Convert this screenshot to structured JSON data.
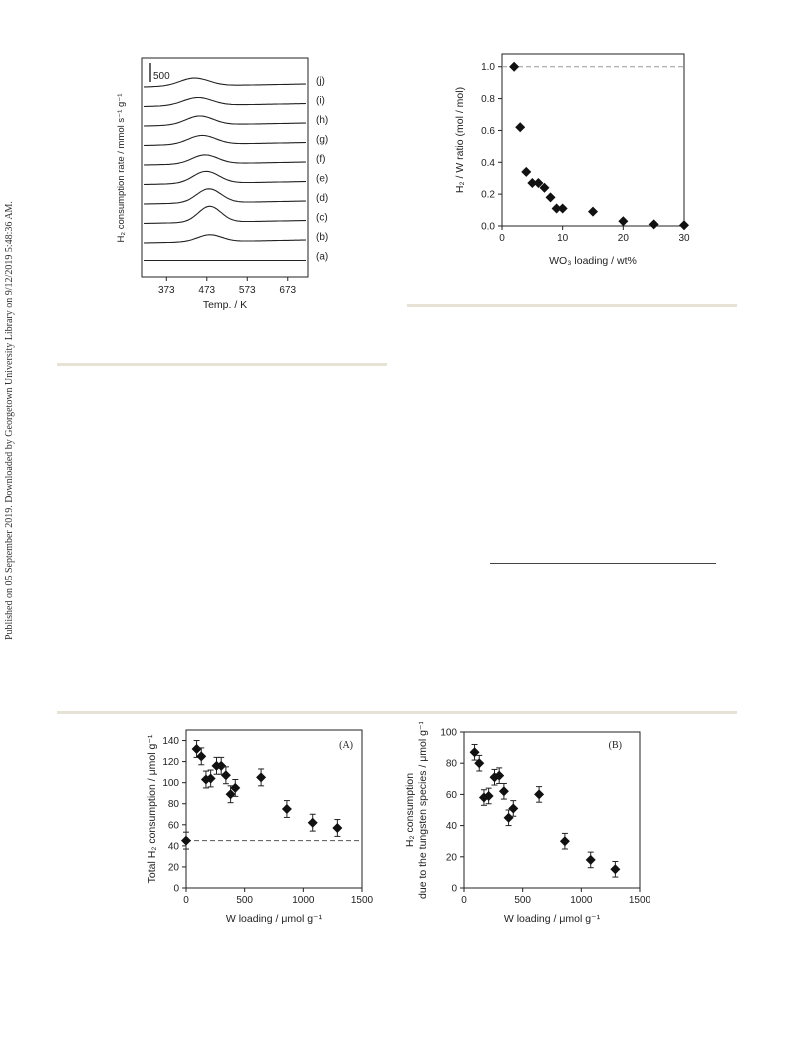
{
  "side_note": "Published on 05 September 2019. Downloaded by Georgetown University Library on 9/12/2019 5:48:36 AM.",
  "chart_data": [
    {
      "type": "line",
      "ylabel": "H₂ consumption rate / mmol s⁻¹ g⁻¹",
      "xlabel": "Temp. / K",
      "xticks": [
        373,
        473,
        573,
        673
      ],
      "xlim": [
        313,
        723
      ],
      "scale_bar_label": "500",
      "series": [
        {
          "name": "(a)",
          "peak_x": 473,
          "peak_height": 0,
          "peak_width": 60
        },
        {
          "name": "(b)",
          "peak_x": 480,
          "peak_height": 7,
          "peak_width": 30
        },
        {
          "name": "(c)",
          "peak_x": 480,
          "peak_height": 16,
          "peak_width": 28
        },
        {
          "name": "(d)",
          "peak_x": 478,
          "peak_height": 14,
          "peak_width": 30
        },
        {
          "name": "(e)",
          "peak_x": 471,
          "peak_height": 12,
          "peak_width": 32
        },
        {
          "name": "(f)",
          "peak_x": 468,
          "peak_height": 9,
          "peak_width": 32
        },
        {
          "name": "(g)",
          "peak_x": 461,
          "peak_height": 9,
          "peak_width": 34
        },
        {
          "name": "(h)",
          "peak_x": 455,
          "peak_height": 9,
          "peak_width": 34
        },
        {
          "name": "(i)",
          "peak_x": 450,
          "peak_height": 8,
          "peak_width": 36
        },
        {
          "name": "(j)",
          "peak_x": 442,
          "peak_height": 8,
          "peak_width": 36
        }
      ]
    },
    {
      "type": "scatter",
      "xlabel": "WO₃ loading / wt%",
      "ylabel": "H₂ / W ratio (mol / mol)",
      "xlim": [
        0,
        30
      ],
      "ylim": [
        0,
        1.08
      ],
      "xticks": [
        0,
        10,
        20,
        30
      ],
      "yticks": [
        "0.0",
        "0.2",
        "0.4",
        "0.6",
        "0.8",
        "1.0"
      ],
      "reference_line": 1.0,
      "x": [
        2,
        3,
        4,
        5,
        6,
        7,
        8,
        9,
        10,
        15,
        20,
        25,
        30
      ],
      "y": [
        1.0,
        0.62,
        0.34,
        0.27,
        0.27,
        0.24,
        0.18,
        0.11,
        0.11,
        0.09,
        0.03,
        0.01,
        0.005
      ]
    },
    {
      "type": "scatter",
      "panel_label": "(A)",
      "xlabel": "W loading / μmol g⁻¹",
      "ylabel": "Total H₂ consumption / μmol g⁻¹",
      "xlim": [
        0,
        1500
      ],
      "ylim": [
        0,
        150
      ],
      "xticks": [
        0,
        500,
        1000,
        1500
      ],
      "yticks": [
        0,
        20,
        40,
        60,
        80,
        100,
        120,
        140
      ],
      "reference_line": 45,
      "error": 8,
      "x": [
        0,
        90,
        130,
        170,
        210,
        260,
        300,
        340,
        380,
        420,
        640,
        860,
        1080,
        1290
      ],
      "y": [
        45,
        132,
        125,
        103,
        104,
        116,
        116,
        107,
        89,
        95,
        105,
        75,
        62,
        57
      ]
    },
    {
      "type": "scatter",
      "panel_label": "(B)",
      "xlabel": "W loading / μmol g⁻¹",
      "ylabel": "H₂ consumption due to the tungsten species / μmol g⁻¹",
      "xlim": [
        0,
        1500
      ],
      "ylim": [
        0,
        100
      ],
      "xticks": [
        0,
        500,
        1000,
        1500
      ],
      "yticks": [
        0,
        20,
        40,
        60,
        80,
        100
      ],
      "error": 5,
      "x": [
        90,
        130,
        170,
        210,
        260,
        300,
        340,
        380,
        420,
        640,
        860,
        1080,
        1290
      ],
      "y": [
        87,
        80,
        58,
        59,
        71,
        72,
        62,
        45,
        51,
        60,
        30,
        18,
        12
      ]
    }
  ]
}
